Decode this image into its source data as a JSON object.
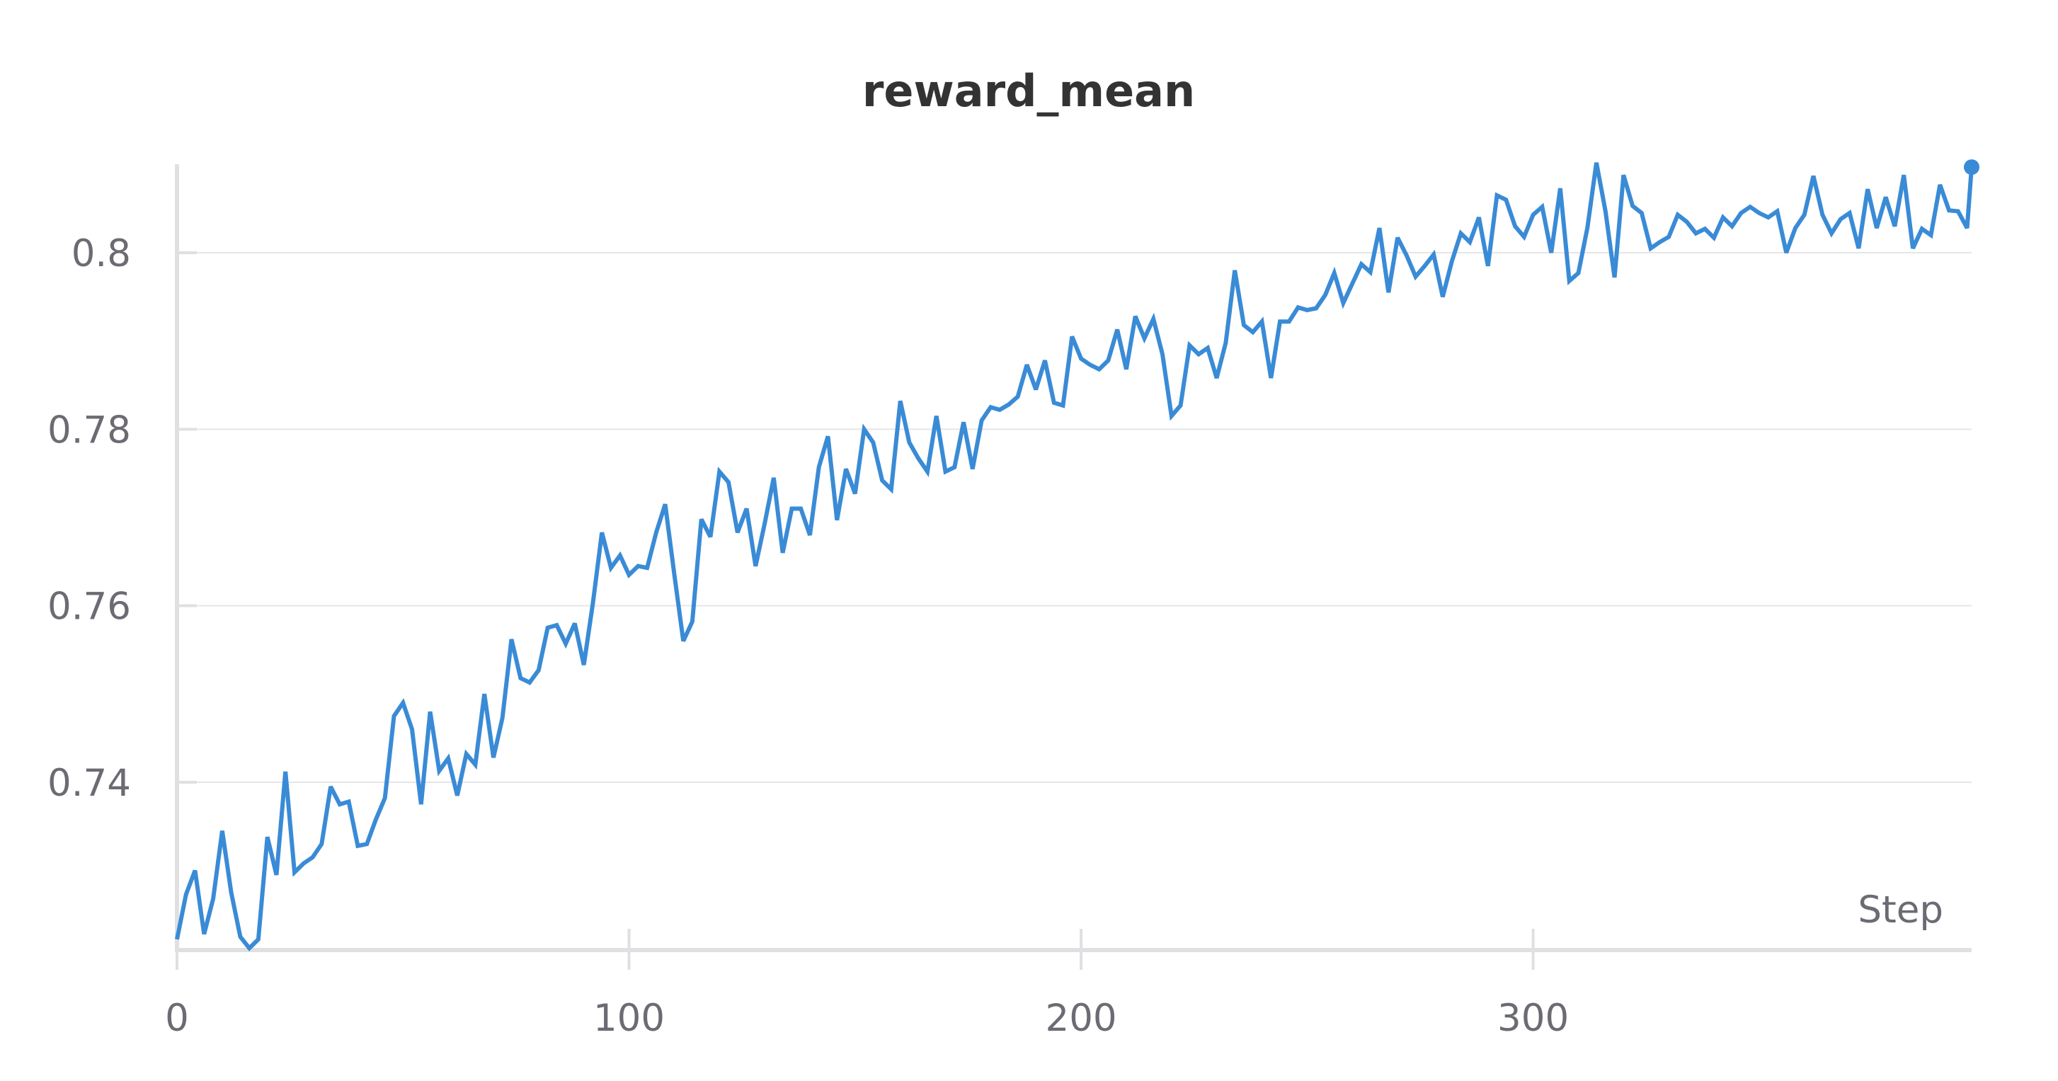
{
  "chart_data": {
    "type": "line",
    "title": "reward_mean",
    "xlabel": "Step",
    "ylabel": "",
    "xlim": [
      0,
      397
    ],
    "ylim": [
      0.7212,
      0.8102
    ],
    "x_ticks": [
      0,
      100,
      200,
      300
    ],
    "x_tick_labels": [
      "0",
      "100",
      "200",
      "300"
    ],
    "y_ticks": [
      0.74,
      0.76,
      0.78,
      0.8
    ],
    "y_tick_labels": [
      "0.74",
      "0.76",
      "0.78",
      "0.8"
    ],
    "grid": true,
    "legend": "none",
    "series": [
      {
        "color": "#3a8bd6",
        "end_marker": true,
        "x": [
          0,
          2,
          4,
          6,
          8,
          10,
          12,
          14,
          16,
          18,
          20,
          22,
          24,
          26,
          28,
          30,
          32,
          34,
          36,
          38,
          40,
          42,
          44,
          46,
          48,
          50,
          52,
          54,
          56,
          58,
          60,
          62,
          64,
          66,
          68,
          70,
          72,
          74,
          76,
          78,
          80,
          82,
          84,
          86,
          88,
          90,
          92,
          94,
          96,
          98,
          100,
          102,
          104,
          106,
          108,
          110,
          112,
          114,
          116,
          118,
          120,
          122,
          124,
          126,
          128,
          130,
          132,
          134,
          136,
          138,
          140,
          142,
          144,
          146,
          148,
          150,
          152,
          154,
          156,
          158,
          160,
          162,
          164,
          166,
          168,
          170,
          172,
          174,
          176,
          178,
          180,
          182,
          184,
          186,
          188,
          190,
          192,
          194,
          196,
          198,
          200,
          202,
          204,
          206,
          208,
          210,
          212,
          214,
          216,
          218,
          220,
          222,
          224,
          226,
          228,
          230,
          232,
          234,
          236,
          238,
          240,
          242,
          244,
          246,
          248,
          250,
          252,
          254,
          256,
          258,
          260,
          262,
          264,
          266,
          268,
          270,
          272,
          274,
          276,
          278,
          280,
          282,
          284,
          286,
          288,
          290,
          292,
          294,
          296,
          298,
          300,
          302,
          304,
          306,
          308,
          310,
          312,
          314,
          316,
          318,
          320,
          322,
          324,
          326,
          328,
          330,
          332,
          334,
          336,
          338,
          340,
          342,
          344,
          346,
          348,
          350,
          352,
          354,
          356,
          358,
          360,
          362,
          364,
          366,
          368,
          370,
          372,
          374,
          376,
          378,
          380,
          382,
          384,
          386,
          388,
          390,
          392,
          394,
          396,
          397
        ],
        "y": [
          0.7222,
          0.7273,
          0.73,
          0.7228,
          0.7268,
          0.7345,
          0.7275,
          0.7225,
          0.7212,
          0.7222,
          0.7338,
          0.7295,
          0.7412,
          0.7298,
          0.7308,
          0.7315,
          0.733,
          0.7395,
          0.7375,
          0.7378,
          0.7328,
          0.733,
          0.7358,
          0.7382,
          0.7475,
          0.749,
          0.746,
          0.7375,
          0.748,
          0.7413,
          0.7427,
          0.7385,
          0.7432,
          0.742,
          0.75,
          0.7428,
          0.7473,
          0.7562,
          0.7518,
          0.7513,
          0.7527,
          0.7575,
          0.7578,
          0.7557,
          0.758,
          0.7533,
          0.7603,
          0.7683,
          0.7643,
          0.7657,
          0.7635,
          0.7645,
          0.7643,
          0.7683,
          0.7715,
          0.7636,
          0.756,
          0.7582,
          0.7698,
          0.7678,
          0.7752,
          0.774,
          0.7683,
          0.771,
          0.7645,
          0.7693,
          0.7745,
          0.766,
          0.771,
          0.771,
          0.768,
          0.7757,
          0.7792,
          0.7697,
          0.7755,
          0.7727,
          0.78,
          0.7785,
          0.7742,
          0.7732,
          0.7832,
          0.7785,
          0.7767,
          0.7752,
          0.7815,
          0.7752,
          0.7757,
          0.7808,
          0.7755,
          0.781,
          0.7825,
          0.7822,
          0.7828,
          0.7837,
          0.7873,
          0.7845,
          0.7878,
          0.783,
          0.7827,
          0.7905,
          0.788,
          0.7873,
          0.7868,
          0.7878,
          0.7913,
          0.7868,
          0.7928,
          0.7903,
          0.7925,
          0.7885,
          0.7815,
          0.7827,
          0.7895,
          0.7885,
          0.7892,
          0.7858,
          0.7898,
          0.798,
          0.7918,
          0.791,
          0.7922,
          0.7858,
          0.7922,
          0.7922,
          0.7938,
          0.7935,
          0.7937,
          0.7952,
          0.7977,
          0.7943,
          0.7965,
          0.7987,
          0.7978,
          0.8028,
          0.7955,
          0.8017,
          0.7997,
          0.7973,
          0.7985,
          0.7998,
          0.795,
          0.799,
          0.8022,
          0.8012,
          0.804,
          0.7985,
          0.8065,
          0.806,
          0.803,
          0.8018,
          0.8043,
          0.8052,
          0.8,
          0.8073,
          0.7968,
          0.7977,
          0.8028,
          0.8102,
          0.8047,
          0.7972,
          0.8088,
          0.8053,
          0.8045,
          0.8005,
          0.8012,
          0.8018,
          0.8043,
          0.8035,
          0.8022,
          0.8027,
          0.8017,
          0.804,
          0.803,
          0.8045,
          0.8052,
          0.8045,
          0.804,
          0.8047,
          0.8,
          0.8028,
          0.8043,
          0.8087,
          0.8043,
          0.8022,
          0.8038,
          0.8045,
          0.8005,
          0.8072,
          0.8028,
          0.8063,
          0.803,
          0.8088,
          0.8005,
          0.8027,
          0.802,
          0.8077,
          0.8048,
          0.8047,
          0.8028,
          0.8097
        ]
      }
    ]
  }
}
